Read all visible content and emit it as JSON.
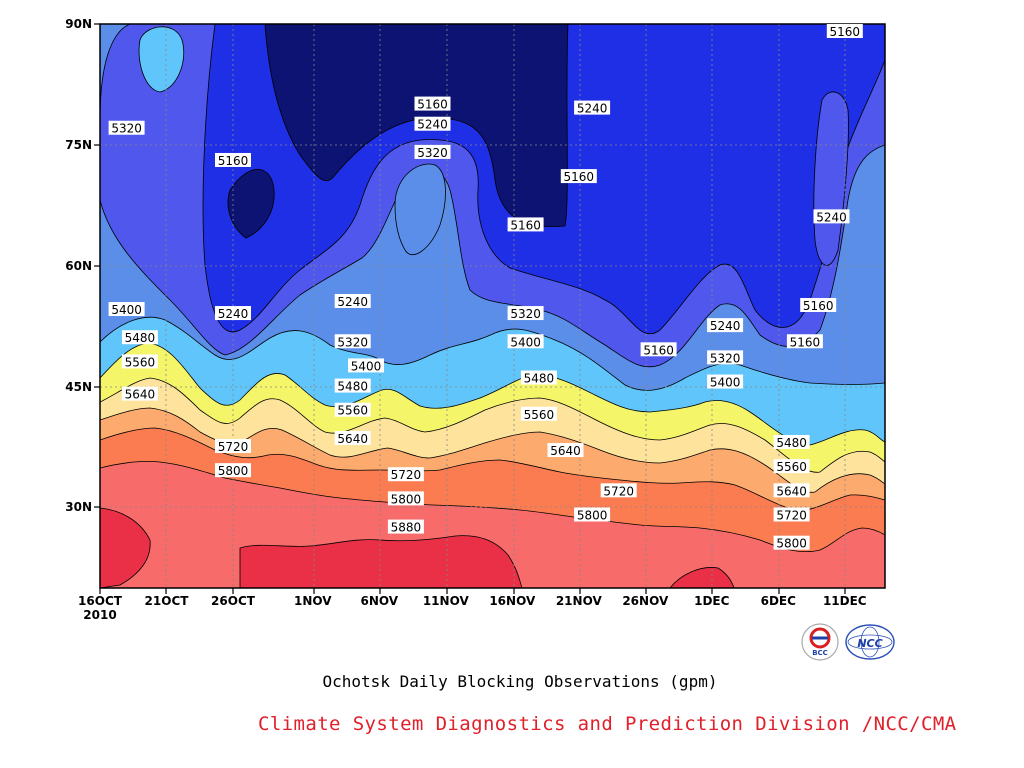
{
  "chart_data": {
    "type": "heatmap",
    "subtype": "filled-contour",
    "title": "Ochotsk Daily Blocking Observations (gpm)",
    "x_ticks": [
      "16OCT\n2010",
      "21OCT",
      "26OCT",
      "1NOV",
      "6NOV",
      "11NOV",
      "16NOV",
      "21NOV",
      "26NOV",
      "1DEC",
      "6DEC",
      "11DEC"
    ],
    "y_ticks": [
      "30N",
      "45N",
      "60N",
      "75N",
      "90N"
    ],
    "y_range": [
      20,
      90
    ],
    "contour_levels": [
      5160,
      5240,
      5320,
      5400,
      5480,
      5560,
      5640,
      5720,
      5800,
      5880
    ],
    "level_colors": [
      "#0c1372",
      "#1f2fe6",
      "#4f57ec",
      "#5a8ee8",
      "#60c5fa",
      "#f5f56a",
      "#fde39c",
      "#fcaa6e",
      "#fb7c50",
      "#f86b6b",
      "#ea3046"
    ],
    "grid": "dashed",
    "contour_labels": [
      {
        "level": "5320",
        "date": "18OCT",
        "lat": 77
      },
      {
        "level": "5160",
        "date": "26OCT",
        "lat": 73
      },
      {
        "level": "5160",
        "date": "10NOV",
        "lat": 80
      },
      {
        "level": "5240",
        "date": "10NOV",
        "lat": 77.5
      },
      {
        "level": "5320",
        "date": "10NOV",
        "lat": 74
      },
      {
        "level": "5240",
        "date": "22NOV",
        "lat": 79.5
      },
      {
        "level": "5160",
        "date": "21NOV",
        "lat": 71
      },
      {
        "level": "5160",
        "date": "17NOV",
        "lat": 65
      },
      {
        "level": "5160",
        "date": "11DEC",
        "lat": 90
      },
      {
        "level": "5240",
        "date": "10DEC",
        "lat": 66
      },
      {
        "level": "5400",
        "date": "18OCT",
        "lat": 54.5
      },
      {
        "level": "5240",
        "date": "26OCT",
        "lat": 54
      },
      {
        "level": "5240",
        "date": "4NOV",
        "lat": 55.5
      },
      {
        "level": "5480",
        "date": "19OCT",
        "lat": 51
      },
      {
        "level": "5320",
        "date": "4NOV",
        "lat": 50.5
      },
      {
        "level": "5560",
        "date": "19OCT",
        "lat": 48
      },
      {
        "level": "5400",
        "date": "5NOV",
        "lat": 47.5
      },
      {
        "level": "5480",
        "date": "4NOV",
        "lat": 45
      },
      {
        "level": "5640",
        "date": "19OCT",
        "lat": 44
      },
      {
        "level": "5560",
        "date": "4NOV",
        "lat": 42
      },
      {
        "level": "5640",
        "date": "4NOV",
        "lat": 38.5
      },
      {
        "level": "5720",
        "date": "26OCT",
        "lat": 37.5
      },
      {
        "level": "5800",
        "date": "26OCT",
        "lat": 34.5
      },
      {
        "level": "5720",
        "date": "8NOV",
        "lat": 34
      },
      {
        "level": "5800",
        "date": "8NOV",
        "lat": 31
      },
      {
        "level": "5880",
        "date": "8NOV",
        "lat": 27.5
      },
      {
        "level": "5320",
        "date": "17NOV",
        "lat": 54
      },
      {
        "level": "5400",
        "date": "17NOV",
        "lat": 50.5
      },
      {
        "level": "5480",
        "date": "18NOV",
        "lat": 46
      },
      {
        "level": "5560",
        "date": "18NOV",
        "lat": 41.5
      },
      {
        "level": "5640",
        "date": "20NOV",
        "lat": 37
      },
      {
        "level": "5720",
        "date": "24NOV",
        "lat": 32
      },
      {
        "level": "5800",
        "date": "22NOV",
        "lat": 29
      },
      {
        "level": "5160",
        "date": "27NOV",
        "lat": 49.5
      },
      {
        "level": "5240",
        "date": "2DEC",
        "lat": 52.5
      },
      {
        "level": "5320",
        "date": "2DEC",
        "lat": 48.5
      },
      {
        "level": "5400",
        "date": "2DEC",
        "lat": 45.5
      },
      {
        "level": "5160",
        "date": "9DEC",
        "lat": 55
      },
      {
        "level": "5160",
        "date": "8DEC",
        "lat": 50.5
      },
      {
        "level": "5480",
        "date": "7DEC",
        "lat": 38
      },
      {
        "level": "5560",
        "date": "7DEC",
        "lat": 35
      },
      {
        "level": "5640",
        "date": "7DEC",
        "lat": 32
      },
      {
        "level": "5720",
        "date": "7DEC",
        "lat": 29
      },
      {
        "level": "5800",
        "date": "7DEC",
        "lat": 25.5
      }
    ]
  },
  "caption": "Ochotsk Daily Blocking Observations (gpm)",
  "organization": "Climate System Diagnostics and Prediction Division /NCC/CMA",
  "logos": [
    {
      "name": "bcc-logo",
      "text": "BCC"
    },
    {
      "name": "ncc-logo",
      "text": "NCC"
    }
  ]
}
